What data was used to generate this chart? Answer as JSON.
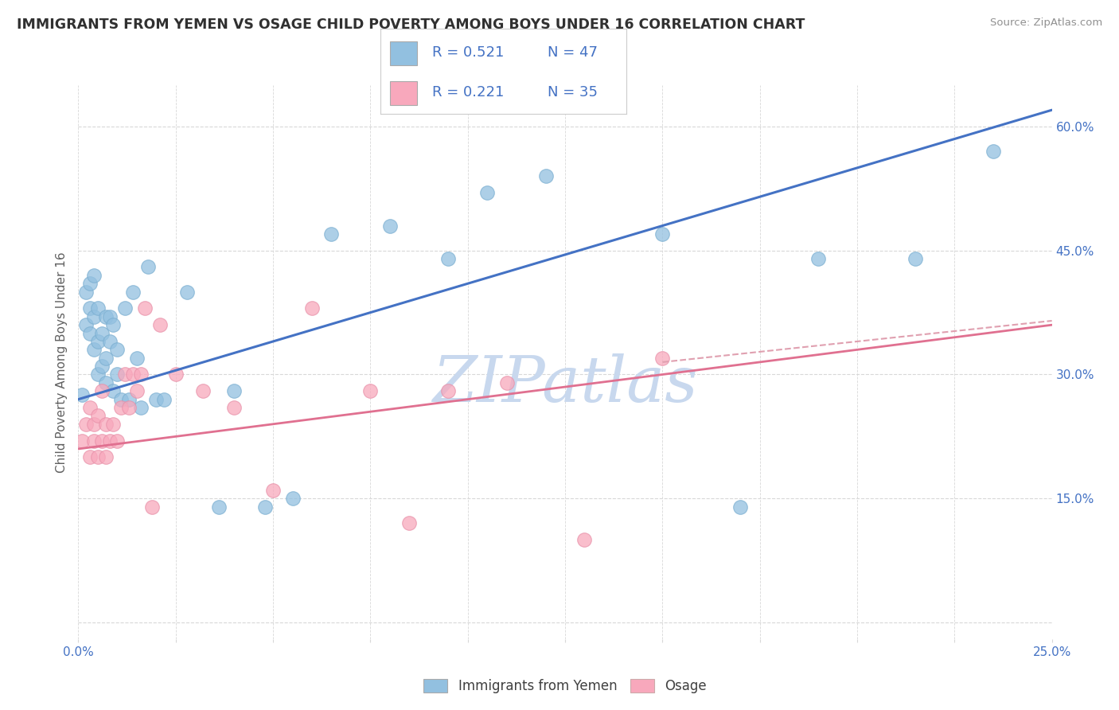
{
  "title": "IMMIGRANTS FROM YEMEN VS OSAGE CHILD POVERTY AMONG BOYS UNDER 16 CORRELATION CHART",
  "source": "Source: ZipAtlas.com",
  "ylabel": "Child Poverty Among Boys Under 16",
  "xlim": [
    0.0,
    0.25
  ],
  "ylim": [
    -0.02,
    0.65
  ],
  "x_ticks": [
    0.0,
    0.025,
    0.05,
    0.075,
    0.1,
    0.125,
    0.15,
    0.175,
    0.2,
    0.225,
    0.25
  ],
  "y_ticks": [
    0.0,
    0.15,
    0.3,
    0.45,
    0.6
  ],
  "y_tick_labels_right": [
    "",
    "15.0%",
    "30.0%",
    "45.0%",
    "60.0%"
  ],
  "x_tick_labels_show": {
    "0.0": "0.0%",
    "0.25": "25.0%"
  },
  "blue_color": "#92c0e0",
  "pink_color": "#f8a8bc",
  "trend_blue_color": "#4472c4",
  "trend_pink_color": "#e07090",
  "trend_pink_dash_color": "#e0a0b0",
  "watermark_color": "#c8d8ee",
  "stat_text_color": "#4472c4",
  "tick_color": "#4472c4",
  "axis_label_color": "#606060",
  "grid_color": "#d8d8d8",
  "title_color": "#303030",
  "legend_label_color": "#404040",
  "legend_r_blue": "R = 0.521",
  "legend_n_blue": "N = 47",
  "legend_r_pink": "R = 0.221",
  "legend_n_pink": "N = 35",
  "legend_label_blue": "Immigrants from Yemen",
  "legend_label_pink": "Osage",
  "blue_scatter_x": [
    0.001,
    0.002,
    0.002,
    0.003,
    0.003,
    0.003,
    0.004,
    0.004,
    0.004,
    0.005,
    0.005,
    0.005,
    0.006,
    0.006,
    0.007,
    0.007,
    0.007,
    0.008,
    0.008,
    0.009,
    0.009,
    0.01,
    0.01,
    0.011,
    0.012,
    0.013,
    0.014,
    0.015,
    0.016,
    0.018,
    0.02,
    0.022,
    0.028,
    0.036,
    0.04,
    0.048,
    0.055,
    0.065,
    0.08,
    0.095,
    0.105,
    0.12,
    0.15,
    0.17,
    0.19,
    0.215,
    0.235
  ],
  "blue_scatter_y": [
    0.275,
    0.4,
    0.36,
    0.38,
    0.35,
    0.41,
    0.33,
    0.37,
    0.42,
    0.3,
    0.34,
    0.38,
    0.31,
    0.35,
    0.37,
    0.32,
    0.29,
    0.34,
    0.37,
    0.28,
    0.36,
    0.3,
    0.33,
    0.27,
    0.38,
    0.27,
    0.4,
    0.32,
    0.26,
    0.43,
    0.27,
    0.27,
    0.4,
    0.14,
    0.28,
    0.14,
    0.15,
    0.47,
    0.48,
    0.44,
    0.52,
    0.54,
    0.47,
    0.14,
    0.44,
    0.44,
    0.57
  ],
  "pink_scatter_x": [
    0.001,
    0.002,
    0.003,
    0.003,
    0.004,
    0.004,
    0.005,
    0.005,
    0.006,
    0.006,
    0.007,
    0.007,
    0.008,
    0.009,
    0.01,
    0.011,
    0.012,
    0.013,
    0.014,
    0.015,
    0.016,
    0.017,
    0.019,
    0.021,
    0.025,
    0.032,
    0.04,
    0.05,
    0.06,
    0.075,
    0.085,
    0.095,
    0.11,
    0.13,
    0.15
  ],
  "pink_scatter_y": [
    0.22,
    0.24,
    0.2,
    0.26,
    0.22,
    0.24,
    0.2,
    0.25,
    0.22,
    0.28,
    0.2,
    0.24,
    0.22,
    0.24,
    0.22,
    0.26,
    0.3,
    0.26,
    0.3,
    0.28,
    0.3,
    0.38,
    0.14,
    0.36,
    0.3,
    0.28,
    0.26,
    0.16,
    0.38,
    0.28,
    0.12,
    0.28,
    0.29,
    0.1,
    0.32
  ],
  "blue_line_x": [
    0.0,
    0.25
  ],
  "blue_line_y": [
    0.27,
    0.62
  ],
  "pink_line_x": [
    0.0,
    0.25
  ],
  "pink_line_y": [
    0.21,
    0.36
  ],
  "pink_dash_line_x": [
    0.15,
    0.25
  ],
  "pink_dash_line_y": [
    0.315,
    0.365
  ]
}
